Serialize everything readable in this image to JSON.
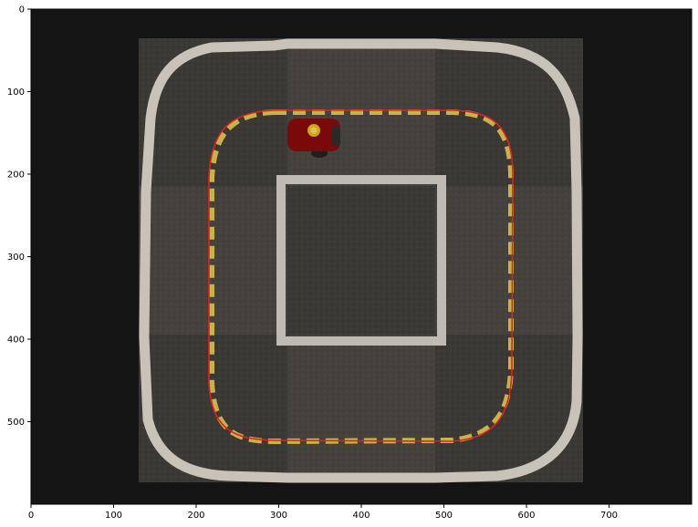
{
  "figure": {
    "type": "image-plot",
    "x_ticks": [
      "0",
      "100",
      "200",
      "300",
      "400",
      "500",
      "600",
      "700"
    ],
    "y_ticks": [
      "0",
      "100",
      "200",
      "300",
      "400",
      "500"
    ],
    "xlim": [
      0,
      800
    ],
    "ylim": [
      600,
      0
    ],
    "background_color": "#141414",
    "track_tile_color": "#3a3835",
    "border_color": "#c9c2b8",
    "center_line_color": "#c9b24a",
    "path_color": "#e0221c",
    "robot_color": "#7a0a0a"
  }
}
